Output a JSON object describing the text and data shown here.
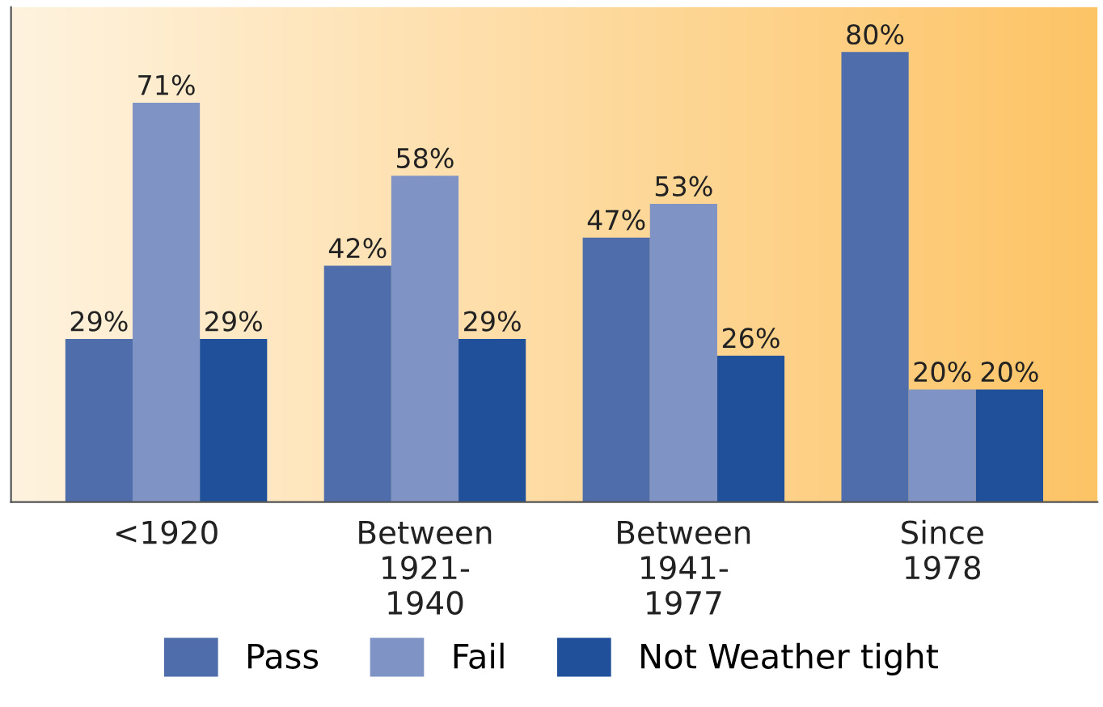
{
  "chart_data": {
    "type": "bar",
    "categories": [
      "<1920",
      "Between\n1921-\n1940",
      "Between\n1941-\n1977",
      "Since\n1978"
    ],
    "series": [
      {
        "name": "Pass",
        "color": "#4e6daa",
        "values": [
          29,
          42,
          47,
          80
        ],
        "value_labels": [
          "29%",
          "42%",
          "47%",
          "80%"
        ]
      },
      {
        "name": "Fail",
        "color": "#7f93c5",
        "values": [
          71,
          58,
          53,
          20
        ],
        "value_labels": [
          "71%",
          "58%",
          "53%",
          "20%"
        ]
      },
      {
        "name": "Not Weather tight",
        "color": "#21509a",
        "values": [
          29,
          29,
          26,
          20
        ],
        "value_labels": [
          "29%",
          "29%",
          "26%",
          "20%"
        ]
      }
    ],
    "legend": "bottom",
    "grid": false
  }
}
